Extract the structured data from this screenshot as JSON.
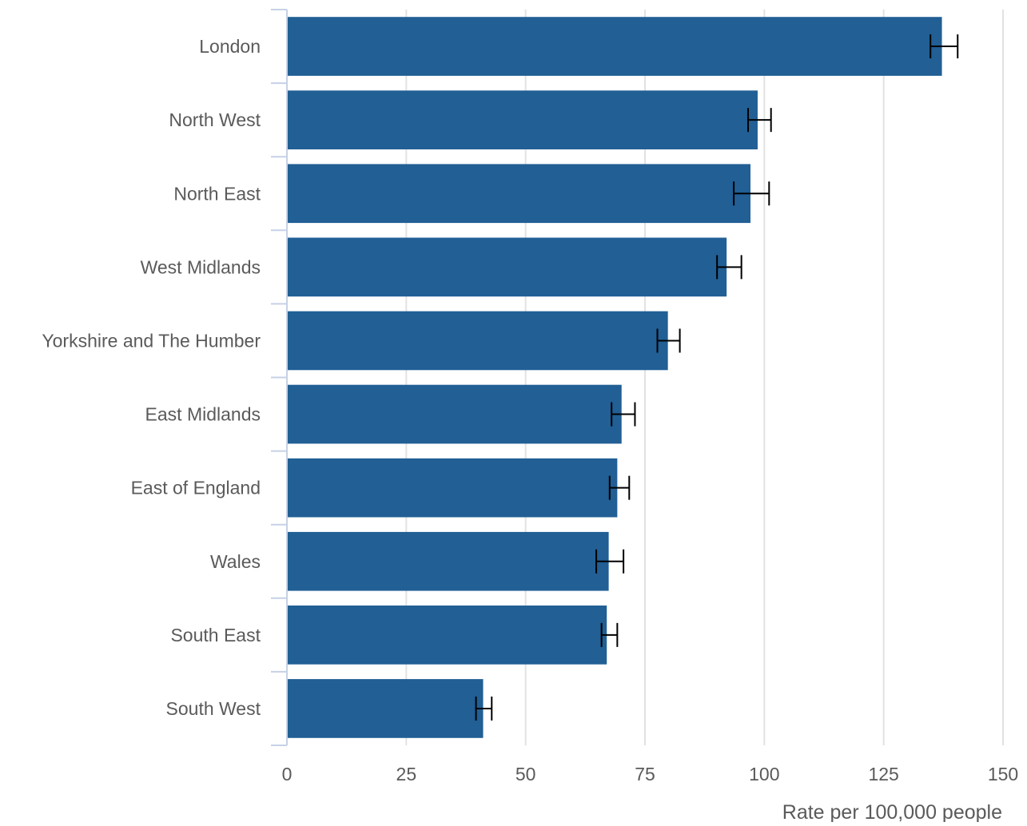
{
  "chart_data": {
    "type": "bar",
    "orientation": "horizontal",
    "title": "",
    "xlabel": "Rate per 100,000 people",
    "ylabel": "",
    "xlim": [
      0,
      150
    ],
    "xticks": [
      "0",
      "25",
      "50",
      "75",
      "100",
      "125",
      "150"
    ],
    "grid": "vertical",
    "legend": "none",
    "categories": [
      "London",
      "North West",
      "North East",
      "West Midlands",
      "Yorkshire and The Humber",
      "East Midlands",
      "East of England",
      "Wales",
      "South East",
      "South West"
    ],
    "values": [
      137.2,
      98.6,
      97.1,
      92.1,
      79.8,
      70.1,
      69.2,
      67.4,
      67.0,
      41.1
    ],
    "error_low": [
      134.8,
      96.6,
      93.6,
      90.1,
      77.6,
      68.0,
      67.6,
      64.8,
      65.9,
      39.6
    ],
    "error_high": [
      140.5,
      101.4,
      101.0,
      95.2,
      82.3,
      72.9,
      71.7,
      70.5,
      69.2,
      42.9
    ],
    "colors": {
      "bar": "#215f95",
      "grid": "#e2e2e2",
      "axis": "#c6d1e5",
      "error": "#000000",
      "text": "#5a5a5a"
    }
  }
}
